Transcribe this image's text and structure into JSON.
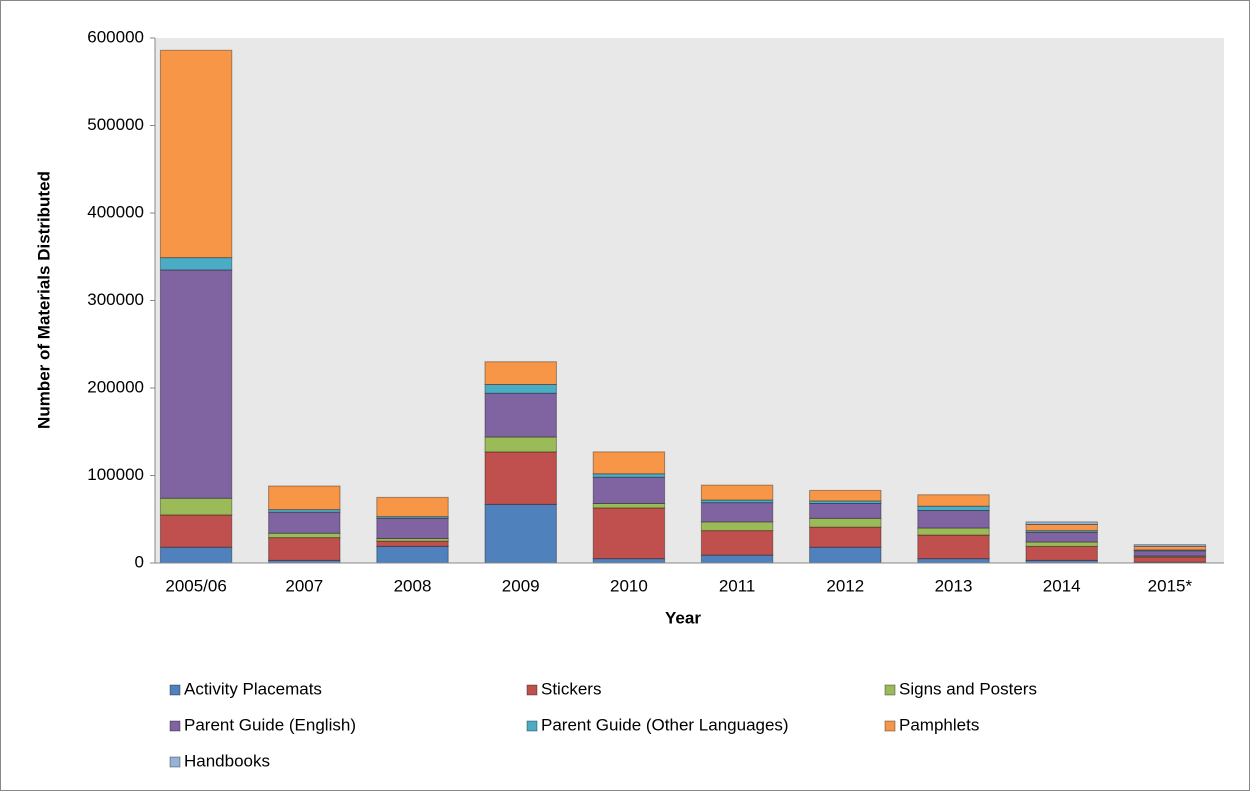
{
  "chart_data": {
    "type": "bar",
    "stacked": true,
    "x_label": "Year",
    "y_label": "Number of Materials Distributed",
    "categories": [
      "2005/06",
      "2007",
      "2008",
      "2009",
      "2010",
      "2011",
      "2012",
      "2013",
      "2014",
      "2015*"
    ],
    "series": [
      {
        "name": "Activity Placemats",
        "color": "#4f81bd",
        "values": [
          18000,
          3000,
          19000,
          67000,
          5000,
          9000,
          18000,
          5000,
          3000,
          1000
        ]
      },
      {
        "name": "Stickers",
        "color": "#c0504d",
        "values": [
          37000,
          26000,
          6000,
          60000,
          58000,
          28000,
          23000,
          27000,
          16000,
          6000
        ]
      },
      {
        "name": "Signs and Posters",
        "color": "#9bbb59",
        "values": [
          19000,
          5000,
          3000,
          17000,
          5000,
          10000,
          10000,
          8000,
          5000,
          1000
        ]
      },
      {
        "name": "Parent Guide (English)",
        "color": "#8064a2",
        "values": [
          261000,
          24000,
          23000,
          50000,
          30000,
          22000,
          17000,
          20000,
          11000,
          6000
        ]
      },
      {
        "name": "Parent Guide (Other Languages)",
        "color": "#4bacc6",
        "values": [
          14000,
          3000,
          2000,
          10000,
          4000,
          3000,
          3000,
          5000,
          2000,
          1000
        ]
      },
      {
        "name": "Pamphlets",
        "color": "#f79646",
        "values": [
          237000,
          27000,
          22000,
          26000,
          25000,
          17000,
          12000,
          13000,
          7000,
          4000
        ]
      },
      {
        "name": "Handbooks",
        "color": "#95b3d7",
        "values": [
          0,
          0,
          0,
          0,
          0,
          0,
          0,
          0,
          3000,
          2000
        ]
      }
    ],
    "ylim": [
      0,
      600000
    ],
    "yticks": [
      0,
      100000,
      200000,
      300000,
      400000,
      500000,
      600000
    ],
    "grid": false
  }
}
